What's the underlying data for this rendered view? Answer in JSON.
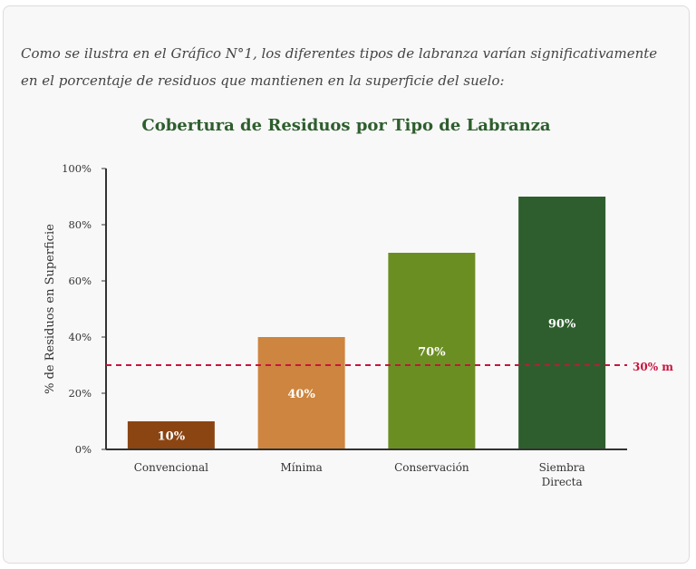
{
  "intro_text": "Como se ilustra en el Gráfico N°1, los diferentes tipos de labranza varían significativamente en el porcentaje de residuos que mantienen en la superficie del suelo:",
  "chart_data": {
    "type": "bar",
    "title": "Cobertura de Residuos por Tipo de Labranza",
    "xlabel": "",
    "ylabel": "% de Residuos en Superficie",
    "ylim": [
      0,
      100
    ],
    "yticks": [
      "0%",
      "20%",
      "40%",
      "60%",
      "80%",
      "100%"
    ],
    "ytick_values": [
      0,
      20,
      40,
      60,
      80,
      100
    ],
    "categories": [
      [
        "Convencional"
      ],
      [
        "Mínima"
      ],
      [
        "Conservación"
      ],
      [
        "Siembra",
        "Directa"
      ]
    ],
    "values": [
      10,
      40,
      70,
      90
    ],
    "data_labels": [
      "10%",
      "40%",
      "70%",
      "90%"
    ],
    "colors": [
      "#8B4513",
      "#CD853F",
      "#6B8E23",
      "#2E5E2E"
    ],
    "reference_line": {
      "value": 30,
      "label": "30% m",
      "color": "#C8143C",
      "style": "dashed"
    },
    "grid": false,
    "legend": "none"
  }
}
